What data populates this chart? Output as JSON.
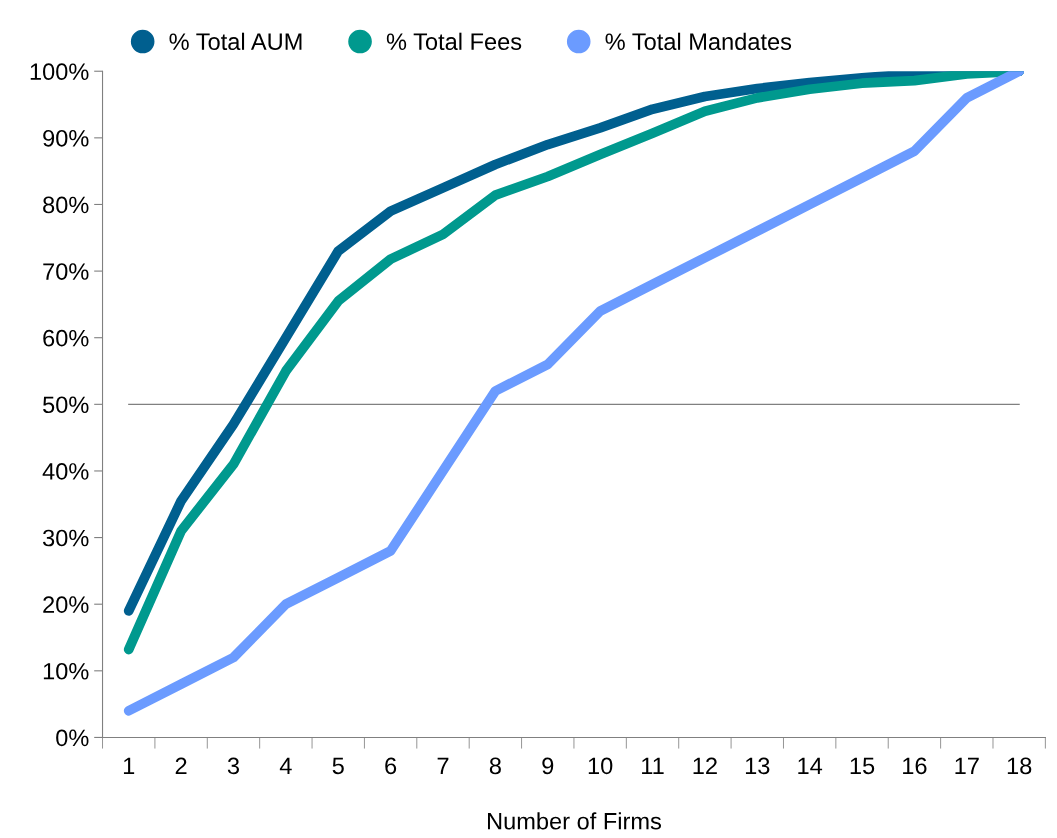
{
  "chart_data": {
    "type": "line",
    "xlabel": "Number of Firms",
    "categories": [
      "1",
      "2",
      "3",
      "4",
      "5",
      "6",
      "7",
      "8",
      "9",
      "10",
      "11",
      "12",
      "13",
      "14",
      "15",
      "16",
      "17",
      "18"
    ],
    "series": [
      {
        "name": "% Total AUM",
        "color": "#005f8f",
        "values": [
          19,
          35.5,
          47,
          60,
          73,
          79,
          82.5,
          86,
          89,
          91.5,
          94.3,
          96.2,
          97.4,
          98.3,
          99,
          99.6,
          100,
          100
        ]
      },
      {
        "name": "% Total Fees",
        "color": "#00998e",
        "values": [
          13.2,
          31,
          41,
          55,
          65.5,
          71.8,
          75.5,
          81.4,
          84.2,
          87.5,
          90.7,
          94,
          96,
          97.3,
          98.2,
          98.6,
          99.6,
          100
        ]
      },
      {
        "name": "% Total Mandates",
        "color": "#6b9bff",
        "values": [
          4,
          8,
          12,
          20,
          24,
          28,
          40,
          52,
          56,
          64,
          68,
          72,
          76,
          80,
          84,
          88,
          96,
          100
        ]
      }
    ],
    "ylim": [
      0,
      100
    ],
    "yticks": [
      {
        "value": 0,
        "label": "0%"
      },
      {
        "value": 10,
        "label": "10%"
      },
      {
        "value": 20,
        "label": "20%"
      },
      {
        "value": 30,
        "label": "30%"
      },
      {
        "value": 40,
        "label": "40%"
      },
      {
        "value": 50,
        "label": "50%"
      },
      {
        "value": 60,
        "label": "60%"
      },
      {
        "value": 70,
        "label": "70%"
      },
      {
        "value": 80,
        "label": "80%"
      },
      {
        "value": 90,
        "label": "90%"
      },
      {
        "value": 100,
        "label": "100%"
      }
    ],
    "ref_lines": [
      {
        "axis": "y",
        "value": 50,
        "color": "#808080"
      }
    ],
    "legend": "top left",
    "line_style": "solid",
    "marker": "none",
    "grid": false
  }
}
